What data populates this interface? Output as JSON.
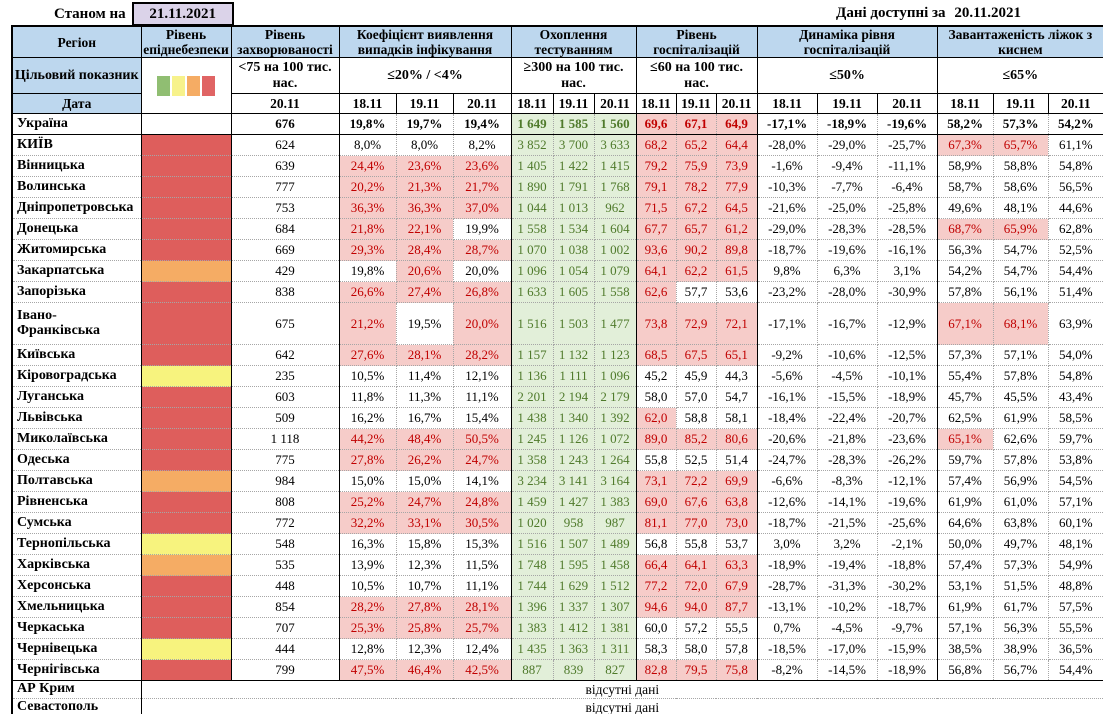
{
  "topbar": {
    "as_of_label": "Станом на",
    "as_of_date": "21.11.2021",
    "available_label": "Дані доступні за",
    "available_date": "20.11.2021"
  },
  "header": {
    "region": "Регіон",
    "target_row": "Цільовий показник",
    "date_row": "Дата",
    "groups": [
      {
        "id": "danger",
        "title": "Рівень епіднебезпеки",
        "threshold": "",
        "dates": []
      },
      {
        "id": "incidence",
        "title": "Рівень захворюваності",
        "threshold": "<75 на 100 тис. нас.",
        "dates": [
          "20.11"
        ]
      },
      {
        "id": "detect",
        "title": "Коефіцієнт виявлення випадків інфікування",
        "threshold": "≤20% / <4%",
        "dates": [
          "18.11",
          "19.11",
          "20.11"
        ]
      },
      {
        "id": "testing",
        "title": "Охоплення тестуванням",
        "threshold": "≥300 на 100 тис. нас.",
        "dates": [
          "18.11",
          "19.11",
          "20.11"
        ]
      },
      {
        "id": "hosp",
        "title": "Рівень госпіталізацій",
        "threshold": "≤60 на 100 тис. нас.",
        "dates": [
          "18.11",
          "19.11",
          "20.11"
        ]
      },
      {
        "id": "dyn",
        "title": "Динаміка рівня госпіталізацій",
        "threshold": "≤50%",
        "dates": [
          "18.11",
          "19.11",
          "20.11"
        ]
      },
      {
        "id": "beds",
        "title": "Завантаженість ліжок з киснем",
        "threshold": "≤65%",
        "dates": [
          "18.11",
          "19.11",
          "20.11"
        ]
      }
    ]
  },
  "colors": {
    "header_bg": "#BDD7EE",
    "bad_bg": "#F6CCC9",
    "bad_text": "#C00000",
    "good_bg": "#E2EFD9",
    "good_text": "#4F7A2B",
    "danger_red": "#DE5E5C",
    "danger_orange": "#F5AC64",
    "danger_yellow": "#F7F37E",
    "date_box_bg": "#DBD3E9",
    "legend": [
      "#90BE72",
      "#F7F28B",
      "#F5AC64",
      "#E06464"
    ]
  },
  "legend_names": [
    "green",
    "yellow",
    "orange",
    "red"
  ],
  "rows": [
    {
      "name": "Україна",
      "total": true,
      "danger": null,
      "incidence": "676",
      "detect": [
        "19,8%",
        "19,7%",
        "19,4%"
      ],
      "detect_bad": [
        0,
        0,
        0
      ],
      "testing": [
        "1 649",
        "1 585",
        "1 560"
      ],
      "hosp": [
        "69,6",
        "67,1",
        "64,9"
      ],
      "hosp_bad": [
        1,
        1,
        1
      ],
      "dyn": [
        "-17,1%",
        "-18,9%",
        "-19,6%"
      ],
      "beds": [
        "58,2%",
        "57,3%",
        "54,2%"
      ],
      "beds_bad": [
        0,
        0,
        0
      ]
    },
    {
      "name": "КИЇВ",
      "danger": "red",
      "incidence": "624",
      "detect": [
        "8,0%",
        "8,0%",
        "8,2%"
      ],
      "detect_bad": [
        0,
        0,
        0
      ],
      "testing": [
        "3 852",
        "3 700",
        "3 633"
      ],
      "hosp": [
        "68,2",
        "65,2",
        "64,4"
      ],
      "hosp_bad": [
        1,
        1,
        1
      ],
      "dyn": [
        "-28,0%",
        "-29,0%",
        "-25,7%"
      ],
      "beds": [
        "67,3%",
        "65,7%",
        "61,1%"
      ],
      "beds_bad": [
        1,
        1,
        0
      ]
    },
    {
      "name": "Вінницька",
      "danger": "red",
      "incidence": "639",
      "detect": [
        "24,4%",
        "23,6%",
        "23,6%"
      ],
      "detect_bad": [
        1,
        1,
        1
      ],
      "testing": [
        "1 405",
        "1 422",
        "1 415"
      ],
      "hosp": [
        "79,2",
        "75,9",
        "73,9"
      ],
      "hosp_bad": [
        1,
        1,
        1
      ],
      "dyn": [
        "-1,6%",
        "-9,4%",
        "-11,1%"
      ],
      "beds": [
        "58,9%",
        "58,8%",
        "54,8%"
      ],
      "beds_bad": [
        0,
        0,
        0
      ]
    },
    {
      "name": "Волинська",
      "danger": "red",
      "incidence": "777",
      "detect": [
        "20,2%",
        "21,3%",
        "21,7%"
      ],
      "detect_bad": [
        1,
        1,
        1
      ],
      "testing": [
        "1 890",
        "1 791",
        "1 768"
      ],
      "hosp": [
        "79,1",
        "78,2",
        "77,9"
      ],
      "hosp_bad": [
        1,
        1,
        1
      ],
      "dyn": [
        "-10,3%",
        "-7,7%",
        "-6,4%"
      ],
      "beds": [
        "58,7%",
        "58,6%",
        "56,5%"
      ],
      "beds_bad": [
        0,
        0,
        0
      ]
    },
    {
      "name": "Дніпропетровська",
      "danger": "red",
      "incidence": "753",
      "detect": [
        "36,3%",
        "36,3%",
        "37,0%"
      ],
      "detect_bad": [
        1,
        1,
        1
      ],
      "testing": [
        "1 044",
        "1 013",
        "962"
      ],
      "hosp": [
        "71,5",
        "67,2",
        "64,5"
      ],
      "hosp_bad": [
        1,
        1,
        1
      ],
      "dyn": [
        "-21,6%",
        "-25,0%",
        "-25,8%"
      ],
      "beds": [
        "49,6%",
        "48,1%",
        "44,6%"
      ],
      "beds_bad": [
        0,
        0,
        0
      ]
    },
    {
      "name": "Донецька",
      "danger": "red",
      "incidence": "684",
      "detect": [
        "21,8%",
        "22,1%",
        "19,9%"
      ],
      "detect_bad": [
        1,
        1,
        0
      ],
      "testing": [
        "1 558",
        "1 534",
        "1 604"
      ],
      "hosp": [
        "67,7",
        "65,7",
        "61,2"
      ],
      "hosp_bad": [
        1,
        1,
        1
      ],
      "dyn": [
        "-29,0%",
        "-28,3%",
        "-28,5%"
      ],
      "beds": [
        "68,7%",
        "65,9%",
        "62,8%"
      ],
      "beds_bad": [
        1,
        1,
        0
      ]
    },
    {
      "name": "Житомирська",
      "danger": "red",
      "incidence": "669",
      "detect": [
        "29,3%",
        "28,4%",
        "28,7%"
      ],
      "detect_bad": [
        1,
        1,
        1
      ],
      "testing": [
        "1 070",
        "1 038",
        "1 002"
      ],
      "hosp": [
        "93,6",
        "90,2",
        "89,8"
      ],
      "hosp_bad": [
        1,
        1,
        1
      ],
      "dyn": [
        "-18,7%",
        "-19,6%",
        "-16,1%"
      ],
      "beds": [
        "56,3%",
        "54,7%",
        "52,5%"
      ],
      "beds_bad": [
        0,
        0,
        0
      ]
    },
    {
      "name": "Закарпатська",
      "danger": "orange",
      "incidence": "429",
      "detect": [
        "19,8%",
        "20,6%",
        "20,0%"
      ],
      "detect_bad": [
        0,
        1,
        0
      ],
      "testing": [
        "1 096",
        "1 054",
        "1 079"
      ],
      "hosp": [
        "64,1",
        "62,2",
        "61,5"
      ],
      "hosp_bad": [
        1,
        1,
        1
      ],
      "dyn": [
        "9,8%",
        "6,3%",
        "3,1%"
      ],
      "beds": [
        "54,2%",
        "54,7%",
        "54,4%"
      ],
      "beds_bad": [
        0,
        0,
        0
      ]
    },
    {
      "name": "Запорізька",
      "danger": "red",
      "incidence": "838",
      "detect": [
        "26,6%",
        "27,4%",
        "26,8%"
      ],
      "detect_bad": [
        1,
        1,
        1
      ],
      "testing": [
        "1 633",
        "1 605",
        "1 558"
      ],
      "hosp": [
        "62,6",
        "57,7",
        "53,6"
      ],
      "hosp_bad": [
        1,
        0,
        0
      ],
      "dyn": [
        "-23,2%",
        "-28,0%",
        "-30,9%"
      ],
      "beds": [
        "57,8%",
        "56,1%",
        "51,4%"
      ],
      "beds_bad": [
        0,
        0,
        0
      ]
    },
    {
      "name": "Івано-Франківська",
      "tall": true,
      "danger": "red",
      "incidence": "675",
      "detect": [
        "21,2%",
        "19,5%",
        "20,0%"
      ],
      "detect_bad": [
        1,
        0,
        1
      ],
      "testing": [
        "1 516",
        "1 503",
        "1 477"
      ],
      "hosp": [
        "73,8",
        "72,9",
        "72,1"
      ],
      "hosp_bad": [
        1,
        1,
        1
      ],
      "dyn": [
        "-17,1%",
        "-16,7%",
        "-12,9%"
      ],
      "beds": [
        "67,1%",
        "68,1%",
        "63,9%"
      ],
      "beds_bad": [
        1,
        1,
        0
      ]
    },
    {
      "name": "Київська",
      "danger": "red",
      "incidence": "642",
      "detect": [
        "27,6%",
        "28,1%",
        "28,2%"
      ],
      "detect_bad": [
        1,
        1,
        1
      ],
      "testing": [
        "1 157",
        "1 132",
        "1 123"
      ],
      "hosp": [
        "68,5",
        "67,5",
        "65,1"
      ],
      "hosp_bad": [
        1,
        1,
        1
      ],
      "dyn": [
        "-9,2%",
        "-10,6%",
        "-12,5%"
      ],
      "beds": [
        "57,3%",
        "57,1%",
        "54,0%"
      ],
      "beds_bad": [
        0,
        0,
        0
      ]
    },
    {
      "name": "Кіровоградська",
      "danger": "yellow",
      "incidence": "235",
      "detect": [
        "10,5%",
        "11,4%",
        "12,1%"
      ],
      "detect_bad": [
        0,
        0,
        0
      ],
      "testing": [
        "1 136",
        "1 111",
        "1 096"
      ],
      "hosp": [
        "45,2",
        "45,9",
        "44,3"
      ],
      "hosp_bad": [
        0,
        0,
        0
      ],
      "dyn": [
        "-5,6%",
        "-4,5%",
        "-10,1%"
      ],
      "beds": [
        "55,4%",
        "57,8%",
        "54,8%"
      ],
      "beds_bad": [
        0,
        0,
        0
      ]
    },
    {
      "name": "Луганська",
      "danger": "red",
      "incidence": "603",
      "detect": [
        "11,8%",
        "11,3%",
        "11,1%"
      ],
      "detect_bad": [
        0,
        0,
        0
      ],
      "testing": [
        "2 201",
        "2 194",
        "2 179"
      ],
      "hosp": [
        "58,0",
        "57,0",
        "54,7"
      ],
      "hosp_bad": [
        0,
        0,
        0
      ],
      "dyn": [
        "-16,1%",
        "-15,5%",
        "-18,9%"
      ],
      "beds": [
        "45,7%",
        "45,5%",
        "43,4%"
      ],
      "beds_bad": [
        0,
        0,
        0
      ]
    },
    {
      "name": "Львівська",
      "danger": "red",
      "incidence": "509",
      "detect": [
        "16,2%",
        "16,7%",
        "15,4%"
      ],
      "detect_bad": [
        0,
        0,
        0
      ],
      "testing": [
        "1 438",
        "1 340",
        "1 392"
      ],
      "hosp": [
        "62,0",
        "58,8",
        "58,1"
      ],
      "hosp_bad": [
        1,
        0,
        0
      ],
      "dyn": [
        "-18,4%",
        "-22,4%",
        "-20,7%"
      ],
      "beds": [
        "62,5%",
        "61,9%",
        "58,5%"
      ],
      "beds_bad": [
        0,
        0,
        0
      ]
    },
    {
      "name": "Миколаївська",
      "danger": "red",
      "incidence": "1 118",
      "detect": [
        "44,2%",
        "48,4%",
        "50,5%"
      ],
      "detect_bad": [
        1,
        1,
        1
      ],
      "testing": [
        "1 245",
        "1 126",
        "1 072"
      ],
      "hosp": [
        "89,0",
        "85,2",
        "80,6"
      ],
      "hosp_bad": [
        1,
        1,
        1
      ],
      "dyn": [
        "-20,6%",
        "-21,8%",
        "-23,6%"
      ],
      "beds": [
        "65,1%",
        "62,6%",
        "59,7%"
      ],
      "beds_bad": [
        1,
        0,
        0
      ]
    },
    {
      "name": "Одеська",
      "danger": "red",
      "incidence": "775",
      "detect": [
        "27,8%",
        "26,2%",
        "24,7%"
      ],
      "detect_bad": [
        1,
        1,
        1
      ],
      "testing": [
        "1 358",
        "1 243",
        "1 264"
      ],
      "hosp": [
        "55,8",
        "52,5",
        "51,4"
      ],
      "hosp_bad": [
        0,
        0,
        0
      ],
      "dyn": [
        "-24,7%",
        "-28,3%",
        "-26,2%"
      ],
      "beds": [
        "59,7%",
        "57,8%",
        "53,8%"
      ],
      "beds_bad": [
        0,
        0,
        0
      ]
    },
    {
      "name": "Полтавська",
      "danger": "orange",
      "incidence": "984",
      "detect": [
        "15,0%",
        "15,0%",
        "14,1%"
      ],
      "detect_bad": [
        0,
        0,
        0
      ],
      "testing": [
        "3 234",
        "3 141",
        "3 164"
      ],
      "hosp": [
        "73,1",
        "72,2",
        "69,9"
      ],
      "hosp_bad": [
        1,
        1,
        1
      ],
      "dyn": [
        "-6,6%",
        "-8,3%",
        "-12,1%"
      ],
      "beds": [
        "57,4%",
        "56,9%",
        "54,5%"
      ],
      "beds_bad": [
        0,
        0,
        0
      ]
    },
    {
      "name": "Рівненська",
      "danger": "red",
      "incidence": "808",
      "detect": [
        "25,2%",
        "24,7%",
        "24,8%"
      ],
      "detect_bad": [
        1,
        1,
        1
      ],
      "testing": [
        "1 459",
        "1 427",
        "1 383"
      ],
      "hosp": [
        "69,0",
        "67,6",
        "63,8"
      ],
      "hosp_bad": [
        1,
        1,
        1
      ],
      "dyn": [
        "-12,6%",
        "-14,1%",
        "-19,6%"
      ],
      "beds": [
        "61,9%",
        "61,0%",
        "57,1%"
      ],
      "beds_bad": [
        0,
        0,
        0
      ]
    },
    {
      "name": "Сумська",
      "danger": "red",
      "incidence": "772",
      "detect": [
        "32,2%",
        "33,1%",
        "30,5%"
      ],
      "detect_bad": [
        1,
        1,
        1
      ],
      "testing": [
        "1 020",
        "958",
        "987"
      ],
      "hosp": [
        "81,1",
        "77,0",
        "73,0"
      ],
      "hosp_bad": [
        1,
        1,
        1
      ],
      "dyn": [
        "-18,7%",
        "-21,5%",
        "-25,6%"
      ],
      "beds": [
        "64,6%",
        "63,8%",
        "60,1%"
      ],
      "beds_bad": [
        0,
        0,
        0
      ]
    },
    {
      "name": "Тернопільська",
      "danger": "yellow",
      "incidence": "548",
      "detect": [
        "16,3%",
        "15,8%",
        "15,3%"
      ],
      "detect_bad": [
        0,
        0,
        0
      ],
      "testing": [
        "1 516",
        "1 507",
        "1 489"
      ],
      "hosp": [
        "56,8",
        "55,8",
        "53,7"
      ],
      "hosp_bad": [
        0,
        0,
        0
      ],
      "dyn": [
        "3,0%",
        "3,2%",
        "-2,1%"
      ],
      "beds": [
        "50,0%",
        "49,7%",
        "48,1%"
      ],
      "beds_bad": [
        0,
        0,
        0
      ]
    },
    {
      "name": "Харківська",
      "danger": "orange",
      "incidence": "535",
      "detect": [
        "13,9%",
        "12,3%",
        "11,5%"
      ],
      "detect_bad": [
        0,
        0,
        0
      ],
      "testing": [
        "1 748",
        "1 595",
        "1 458"
      ],
      "hosp": [
        "66,4",
        "64,1",
        "63,3"
      ],
      "hosp_bad": [
        1,
        1,
        1
      ],
      "dyn": [
        "-18,9%",
        "-19,4%",
        "-18,8%"
      ],
      "beds": [
        "57,4%",
        "57,3%",
        "54,9%"
      ],
      "beds_bad": [
        0,
        0,
        0
      ]
    },
    {
      "name": "Херсонська",
      "danger": "red",
      "incidence": "448",
      "detect": [
        "10,5%",
        "10,7%",
        "11,1%"
      ],
      "detect_bad": [
        0,
        0,
        0
      ],
      "testing": [
        "1 744",
        "1 629",
        "1 512"
      ],
      "hosp": [
        "77,2",
        "72,0",
        "67,9"
      ],
      "hosp_bad": [
        1,
        1,
        1
      ],
      "dyn": [
        "-28,7%",
        "-31,3%",
        "-30,2%"
      ],
      "beds": [
        "53,1%",
        "51,5%",
        "48,8%"
      ],
      "beds_bad": [
        0,
        0,
        0
      ]
    },
    {
      "name": "Хмельницька",
      "danger": "red",
      "incidence": "854",
      "detect": [
        "28,2%",
        "27,8%",
        "28,1%"
      ],
      "detect_bad": [
        1,
        1,
        1
      ],
      "testing": [
        "1 396",
        "1 337",
        "1 307"
      ],
      "hosp": [
        "94,6",
        "94,0",
        "87,7"
      ],
      "hosp_bad": [
        1,
        1,
        1
      ],
      "dyn": [
        "-13,1%",
        "-10,2%",
        "-18,7%"
      ],
      "beds": [
        "61,9%",
        "61,7%",
        "57,5%"
      ],
      "beds_bad": [
        0,
        0,
        0
      ]
    },
    {
      "name": "Черкаська",
      "danger": "red",
      "incidence": "707",
      "detect": [
        "25,3%",
        "25,8%",
        "25,7%"
      ],
      "detect_bad": [
        1,
        1,
        1
      ],
      "testing": [
        "1 383",
        "1 412",
        "1 381"
      ],
      "hosp": [
        "60,0",
        "57,2",
        "55,5"
      ],
      "hosp_bad": [
        0,
        0,
        0
      ],
      "dyn": [
        "0,7%",
        "-4,5%",
        "-9,7%"
      ],
      "beds": [
        "57,1%",
        "56,3%",
        "55,5%"
      ],
      "beds_bad": [
        0,
        0,
        0
      ]
    },
    {
      "name": "Чернівецька",
      "danger": "yellow",
      "incidence": "444",
      "detect": [
        "12,8%",
        "12,3%",
        "12,4%"
      ],
      "detect_bad": [
        0,
        0,
        0
      ],
      "testing": [
        "1 435",
        "1 363",
        "1 311"
      ],
      "hosp": [
        "58,3",
        "58,0",
        "57,8"
      ],
      "hosp_bad": [
        0,
        0,
        0
      ],
      "dyn": [
        "-18,5%",
        "-17,0%",
        "-15,9%"
      ],
      "beds": [
        "38,5%",
        "38,9%",
        "36,5%"
      ],
      "beds_bad": [
        0,
        0,
        0
      ]
    },
    {
      "name": "Чернігівська",
      "danger": "red",
      "incidence": "799",
      "detect": [
        "47,5%",
        "46,4%",
        "42,5%"
      ],
      "detect_bad": [
        1,
        1,
        1
      ],
      "testing": [
        "887",
        "839",
        "827"
      ],
      "hosp": [
        "82,8",
        "79,5",
        "75,8"
      ],
      "hosp_bad": [
        1,
        1,
        1
      ],
      "dyn": [
        "-8,2%",
        "-14,5%",
        "-18,9%"
      ],
      "beds": [
        "56,8%",
        "56,7%",
        "54,4%"
      ],
      "beds_bad": [
        0,
        0,
        0
      ]
    }
  ],
  "no_data": {
    "label": "відсутні дані",
    "regions": [
      "АР Крим",
      "Севастополь"
    ]
  }
}
